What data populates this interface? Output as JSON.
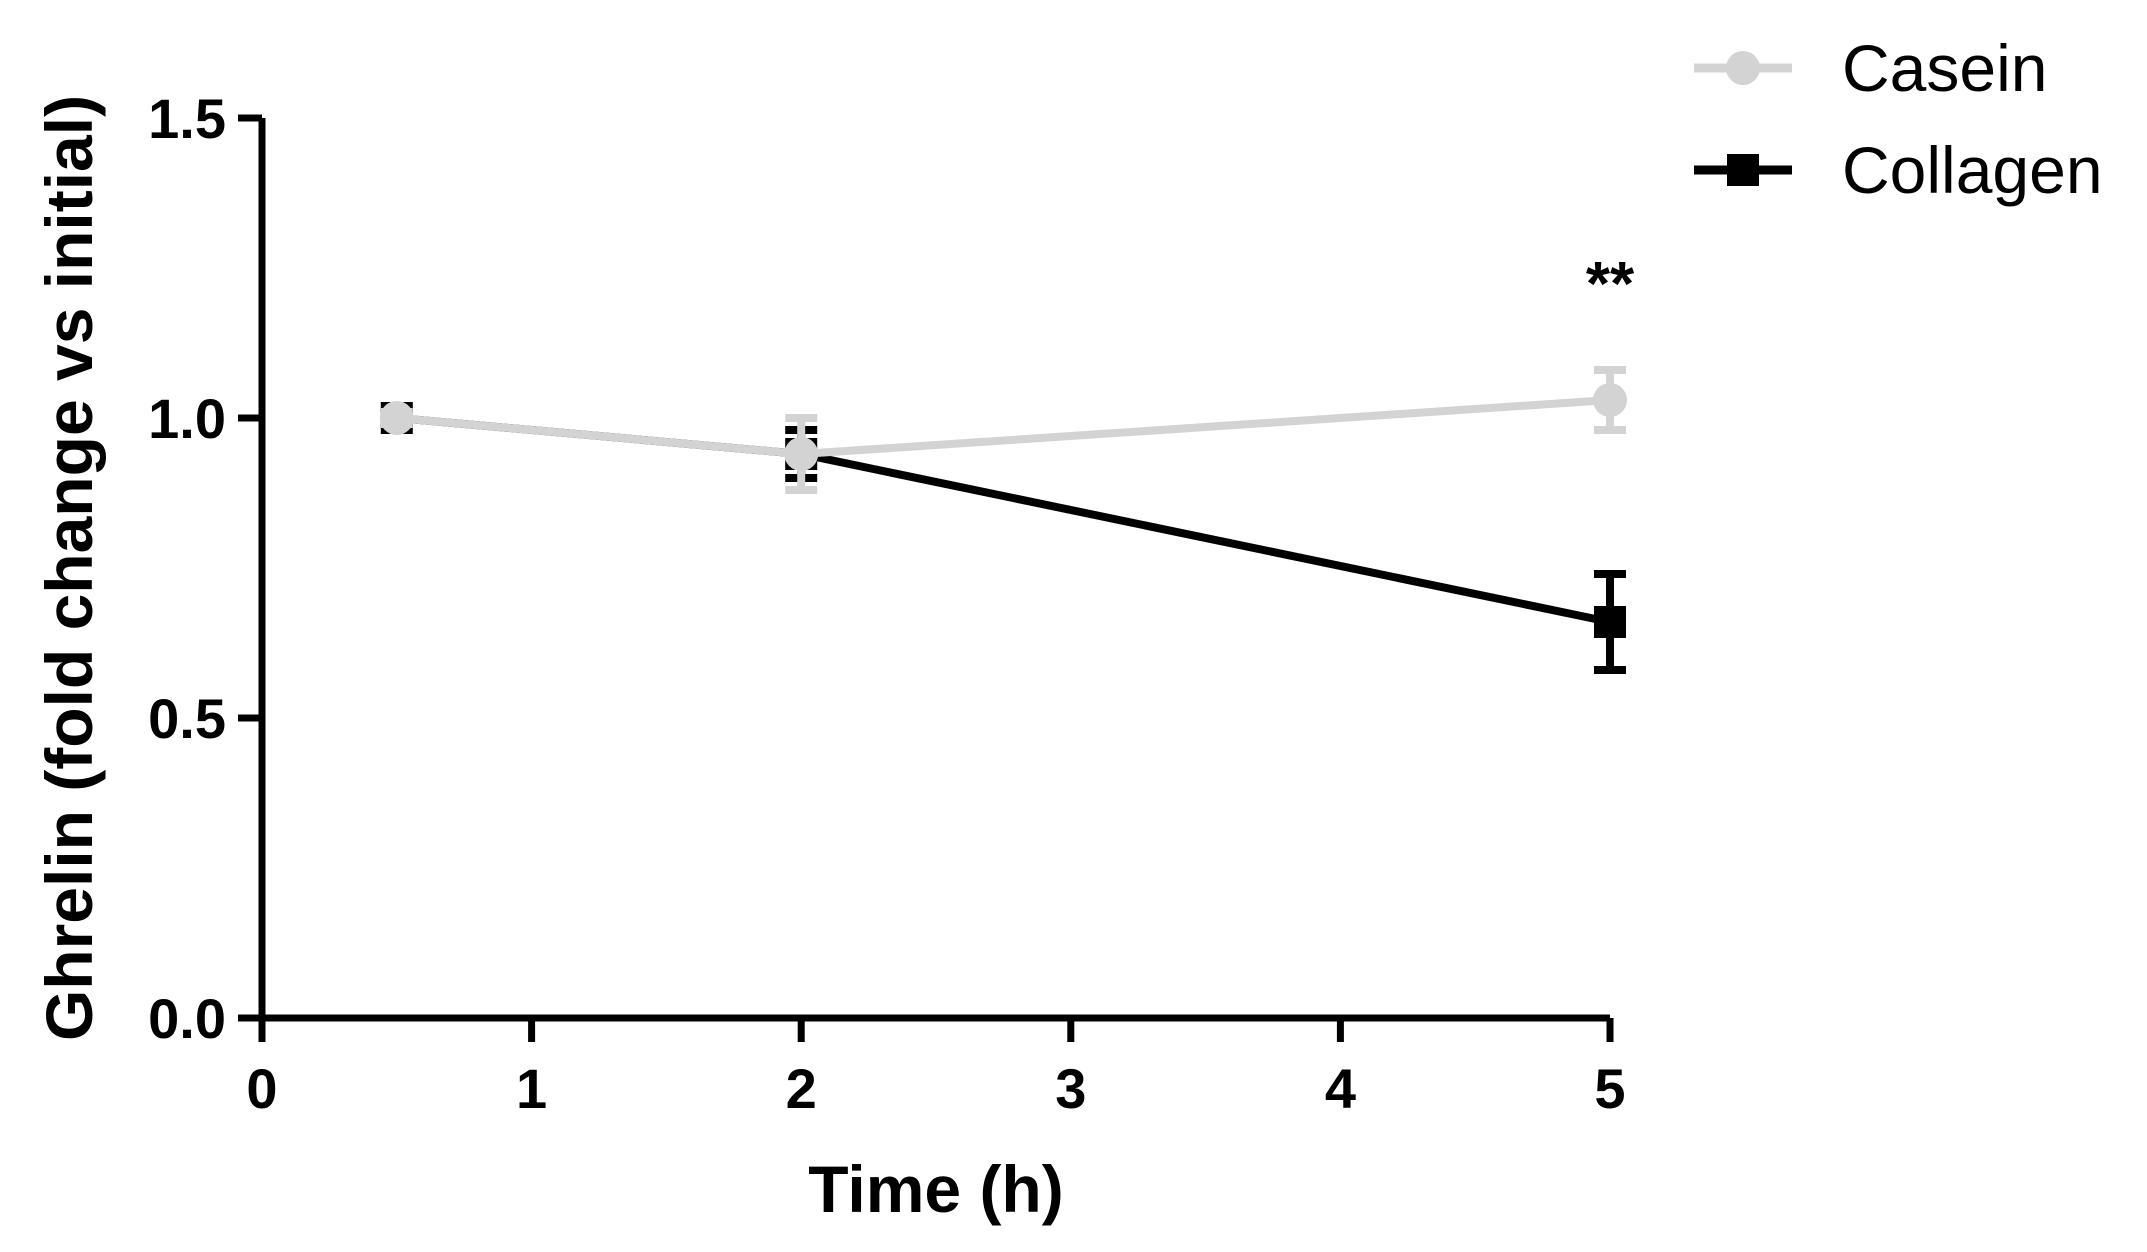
{
  "chart_data": {
    "type": "line",
    "title": "",
    "xlabel": "Time (h)",
    "ylabel": "Ghrelin (fold change vs initial)",
    "xlim": [
      0,
      5
    ],
    "ylim": [
      0,
      1.5
    ],
    "x_ticks": [
      "0",
      "1",
      "2",
      "3",
      "4",
      "5"
    ],
    "y_ticks": [
      "0.0",
      "0.5",
      "1.0",
      "1.5"
    ],
    "grid": false,
    "legend_position": "top-right",
    "series": [
      {
        "name": "Casein",
        "color": "#d3d3d3",
        "marker": "circle",
        "x": [
          0.5,
          2,
          5
        ],
        "y": [
          1.0,
          0.94,
          1.03
        ],
        "error": [
          0.01,
          0.06,
          0.05
        ]
      },
      {
        "name": "Collagen",
        "color": "#000000",
        "marker": "square",
        "x": [
          0.5,
          2,
          5
        ],
        "y": [
          1.0,
          0.94,
          0.66
        ],
        "error": [
          0.01,
          0.04,
          0.08
        ]
      }
    ],
    "annotations": [
      {
        "text": "**",
        "x": 5
      }
    ]
  }
}
